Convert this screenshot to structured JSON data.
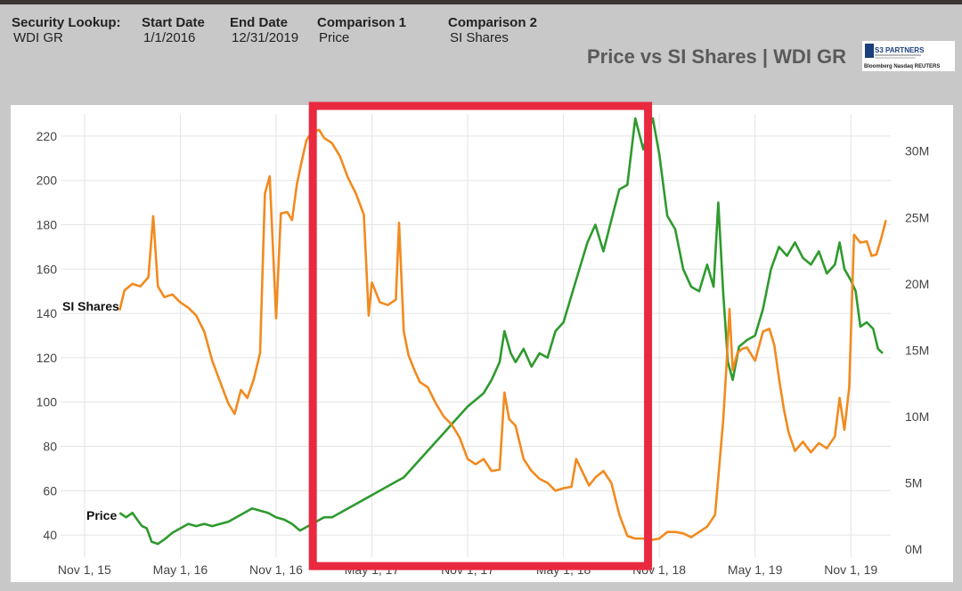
{
  "header": {
    "security_label": "Security Lookup:",
    "security_value": "WDI GR",
    "start_label": "Start Date",
    "start_value": "1/1/2016",
    "end_label": "End Date",
    "end_value": "12/31/2019",
    "comp1_label": "Comparison 1",
    "comp1_value": "Price",
    "comp2_label": "Comparison 2",
    "comp2_value": "SI Shares"
  },
  "logo": {
    "brand_text": "S3 PARTNERS",
    "partner_text": "Bloomberg  Nasdaq  REUTERS"
  },
  "colors": {
    "price": "#2e9a2e",
    "si_shares": "#f28a1e",
    "highlight": "#e8293f",
    "grid": "#e4e4e4",
    "axis_text": "#444444"
  },
  "chart_data": {
    "type": "line",
    "title": "Price vs SI Shares | WDI GR",
    "x_labels": [
      "Nov 1, 15",
      "May 1, 16",
      "Nov 1, 16",
      "May 1, 17",
      "Nov 1, 17",
      "May 1, 18",
      "Nov 1, 18",
      "May 1, 19",
      "Nov 1, 19"
    ],
    "x_label_months": [
      0,
      6,
      12,
      18,
      24,
      30,
      36,
      42,
      48
    ],
    "xlim_months": [
      -1.5,
      50.5
    ],
    "y_left": {
      "label": "Price",
      "ticks": [
        40,
        60,
        80,
        100,
        120,
        140,
        160,
        180,
        200,
        220
      ],
      "lim": [
        30,
        230
      ]
    },
    "y_right": {
      "label": "SI Shares",
      "tick_labels": [
        "0M",
        "5M",
        "10M",
        "15M",
        "20M",
        "25M",
        "30M"
      ],
      "ticks": [
        0,
        5,
        10,
        15,
        20,
        25,
        30
      ],
      "lim": [
        -0.6,
        32.8
      ],
      "unit": "M"
    },
    "highlight_box": {
      "from_month": 14.3,
      "to_month": 35.3,
      "label": ""
    },
    "series": [
      {
        "name": "Price",
        "axis": "left",
        "points": [
          [
            2.2,
            50
          ],
          [
            2.6,
            48
          ],
          [
            3.0,
            50
          ],
          [
            3.3,
            47
          ],
          [
            3.6,
            44
          ],
          [
            3.9,
            43
          ],
          [
            4.2,
            37
          ],
          [
            4.6,
            36
          ],
          [
            5.0,
            38
          ],
          [
            5.5,
            41
          ],
          [
            6.0,
            43
          ],
          [
            6.5,
            45
          ],
          [
            7.0,
            44
          ],
          [
            7.5,
            45
          ],
          [
            8.0,
            44
          ],
          [
            8.5,
            45
          ],
          [
            9.0,
            46
          ],
          [
            9.5,
            48
          ],
          [
            10.0,
            50
          ],
          [
            10.5,
            52
          ],
          [
            11.0,
            51
          ],
          [
            11.5,
            50
          ],
          [
            12.0,
            48
          ],
          [
            12.5,
            47
          ],
          [
            13.0,
            45
          ],
          [
            13.5,
            42
          ],
          [
            14.0,
            44
          ],
          [
            14.5,
            46
          ],
          [
            15.0,
            48
          ],
          [
            15.5,
            48
          ],
          [
            16.0,
            50
          ],
          [
            16.5,
            52
          ],
          [
            17.0,
            54
          ],
          [
            17.5,
            56
          ],
          [
            18.0,
            58
          ],
          [
            18.5,
            60
          ],
          [
            19.0,
            62
          ],
          [
            19.5,
            64
          ],
          [
            20.0,
            66
          ],
          [
            20.5,
            70
          ],
          [
            21.0,
            74
          ],
          [
            21.5,
            78
          ],
          [
            22.0,
            82
          ],
          [
            22.5,
            86
          ],
          [
            23.0,
            90
          ],
          [
            23.5,
            94
          ],
          [
            24.0,
            98
          ],
          [
            24.5,
            101
          ],
          [
            25.0,
            104
          ],
          [
            25.5,
            110
          ],
          [
            26.0,
            118
          ],
          [
            26.3,
            132
          ],
          [
            26.7,
            122
          ],
          [
            27.0,
            118
          ],
          [
            27.5,
            124
          ],
          [
            28.0,
            116
          ],
          [
            28.5,
            122
          ],
          [
            29.0,
            120
          ],
          [
            29.5,
            132
          ],
          [
            30.0,
            136
          ],
          [
            30.5,
            148
          ],
          [
            31.0,
            160
          ],
          [
            31.5,
            172
          ],
          [
            32.0,
            180
          ],
          [
            32.5,
            168
          ],
          [
            33.0,
            182
          ],
          [
            33.5,
            196
          ],
          [
            34.0,
            198
          ],
          [
            34.5,
            228
          ],
          [
            35.0,
            214
          ],
          [
            35.3,
            222
          ],
          [
            35.6,
            228
          ],
          [
            36.0,
            212
          ],
          [
            36.5,
            184
          ],
          [
            37.0,
            178
          ],
          [
            37.5,
            160
          ],
          [
            38.0,
            152
          ],
          [
            38.5,
            150
          ],
          [
            39.0,
            162
          ],
          [
            39.4,
            152
          ],
          [
            39.7,
            190
          ],
          [
            40.0,
            150
          ],
          [
            40.3,
            118
          ],
          [
            40.6,
            110
          ],
          [
            41.0,
            125
          ],
          [
            41.5,
            128
          ],
          [
            42.0,
            130
          ],
          [
            42.5,
            142
          ],
          [
            43.0,
            160
          ],
          [
            43.5,
            170
          ],
          [
            44.0,
            166
          ],
          [
            44.5,
            172
          ],
          [
            45.0,
            165
          ],
          [
            45.5,
            162
          ],
          [
            46.0,
            168
          ],
          [
            46.5,
            158
          ],
          [
            47.0,
            162
          ],
          [
            47.3,
            172
          ],
          [
            47.6,
            160
          ],
          [
            48.0,
            155
          ],
          [
            48.3,
            150
          ],
          [
            48.6,
            134
          ],
          [
            49.0,
            136
          ],
          [
            49.4,
            133
          ],
          [
            49.7,
            124
          ],
          [
            50.0,
            122
          ]
        ]
      },
      {
        "name": "SI Shares",
        "axis": "right",
        "points": [
          [
            2.2,
            18.0
          ],
          [
            2.5,
            19.5
          ],
          [
            3.0,
            20.0
          ],
          [
            3.5,
            19.8
          ],
          [
            4.0,
            20.5
          ],
          [
            4.3,
            25.1
          ],
          [
            4.6,
            19.8
          ],
          [
            5.0,
            19.0
          ],
          [
            5.5,
            19.2
          ],
          [
            6.0,
            18.6
          ],
          [
            6.5,
            18.2
          ],
          [
            7.0,
            17.6
          ],
          [
            7.5,
            16.4
          ],
          [
            8.0,
            14.2
          ],
          [
            8.5,
            12.6
          ],
          [
            9.0,
            11.0
          ],
          [
            9.4,
            10.2
          ],
          [
            9.8,
            12.0
          ],
          [
            10.2,
            11.4
          ],
          [
            10.6,
            12.8
          ],
          [
            11.0,
            14.8
          ],
          [
            11.3,
            26.8
          ],
          [
            11.6,
            28.1
          ],
          [
            12.0,
            17.4
          ],
          [
            12.3,
            25.3
          ],
          [
            12.7,
            25.4
          ],
          [
            13.0,
            24.8
          ],
          [
            13.3,
            27.5
          ],
          [
            13.6,
            29.2
          ],
          [
            13.9,
            30.8
          ],
          [
            14.2,
            31.4
          ],
          [
            14.7,
            31.6
          ],
          [
            15.0,
            31.0
          ],
          [
            15.5,
            30.6
          ],
          [
            16.0,
            29.6
          ],
          [
            16.5,
            28.0
          ],
          [
            17.0,
            26.8
          ],
          [
            17.5,
            25.2
          ],
          [
            17.8,
            17.6
          ],
          [
            18.0,
            20.1
          ],
          [
            18.5,
            18.6
          ],
          [
            19.0,
            18.4
          ],
          [
            19.5,
            18.8
          ],
          [
            19.7,
            24.6
          ],
          [
            20.0,
            16.4
          ],
          [
            20.3,
            14.6
          ],
          [
            20.7,
            13.4
          ],
          [
            21.0,
            12.6
          ],
          [
            21.5,
            12.2
          ],
          [
            22.0,
            11.0
          ],
          [
            22.5,
            10.0
          ],
          [
            23.0,
            9.4
          ],
          [
            23.5,
            8.4
          ],
          [
            24.0,
            6.8
          ],
          [
            24.5,
            6.4
          ],
          [
            25.0,
            6.8
          ],
          [
            25.5,
            5.9
          ],
          [
            26.0,
            6.0
          ],
          [
            26.3,
            11.8
          ],
          [
            26.6,
            9.8
          ],
          [
            27.0,
            9.3
          ],
          [
            27.5,
            6.8
          ],
          [
            28.0,
            5.9
          ],
          [
            28.5,
            5.3
          ],
          [
            29.0,
            5.0
          ],
          [
            29.5,
            4.4
          ],
          [
            30.0,
            4.6
          ],
          [
            30.5,
            4.7
          ],
          [
            30.8,
            6.8
          ],
          [
            31.2,
            5.8
          ],
          [
            31.6,
            4.8
          ],
          [
            32.0,
            5.4
          ],
          [
            32.5,
            5.9
          ],
          [
            33.0,
            5.0
          ],
          [
            33.5,
            2.6
          ],
          [
            34.0,
            1.0
          ],
          [
            34.5,
            0.8
          ],
          [
            35.0,
            0.8
          ],
          [
            35.5,
            0.7
          ],
          [
            36.0,
            0.8
          ],
          [
            36.5,
            1.3
          ],
          [
            37.0,
            1.3
          ],
          [
            37.5,
            1.2
          ],
          [
            38.0,
            0.9
          ],
          [
            38.5,
            1.3
          ],
          [
            39.0,
            1.7
          ],
          [
            39.5,
            2.6
          ],
          [
            39.8,
            6.8
          ],
          [
            40.0,
            9.6
          ],
          [
            40.2,
            13.6
          ],
          [
            40.4,
            18.1
          ],
          [
            40.6,
            13.5
          ],
          [
            40.9,
            14.8
          ],
          [
            41.2,
            15.1
          ],
          [
            41.5,
            15.2
          ],
          [
            41.8,
            14.6
          ],
          [
            42.0,
            14.2
          ],
          [
            42.5,
            16.4
          ],
          [
            42.9,
            16.6
          ],
          [
            43.2,
            15.4
          ],
          [
            43.5,
            12.9
          ],
          [
            43.8,
            10.6
          ],
          [
            44.1,
            8.8
          ],
          [
            44.5,
            7.4
          ],
          [
            45.0,
            8.1
          ],
          [
            45.5,
            7.3
          ],
          [
            46.0,
            8.0
          ],
          [
            46.5,
            7.6
          ],
          [
            47.0,
            8.5
          ],
          [
            47.3,
            11.4
          ],
          [
            47.6,
            9.0
          ],
          [
            47.9,
            12.2
          ],
          [
            48.2,
            23.7
          ],
          [
            48.6,
            23.1
          ],
          [
            49.0,
            23.2
          ],
          [
            49.3,
            22.1
          ],
          [
            49.6,
            22.2
          ],
          [
            49.9,
            23.4
          ],
          [
            50.2,
            24.8
          ]
        ]
      }
    ],
    "series_labels": [
      {
        "text": "SI Shares",
        "series": "SI Shares"
      },
      {
        "text": "Price",
        "series": "Price"
      }
    ]
  }
}
